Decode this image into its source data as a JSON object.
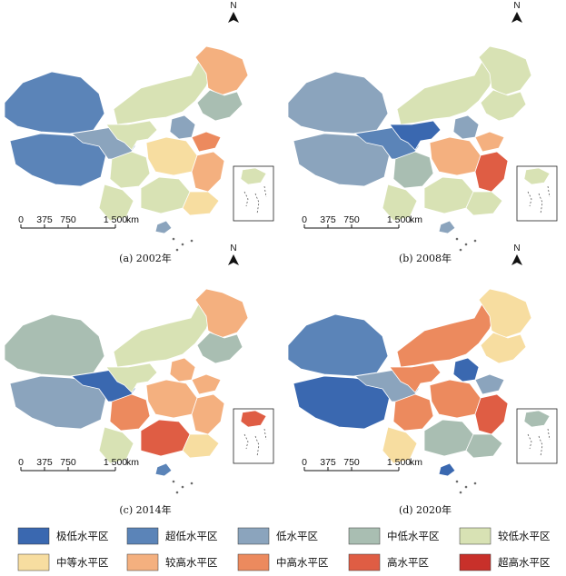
{
  "panels": [
    {
      "caption": "(a) 2002年",
      "scale": {
        "ticks": [
          "0",
          "375",
          "750",
          "1 500"
        ],
        "unit": "km"
      },
      "north": "N",
      "fill": {
        "west": "c2",
        "tibetPlain": "c2",
        "qinghai": "c3",
        "gansu": "c5",
        "innerMongolia": "c5",
        "northeast": "c4",
        "heilongjiang": "c7",
        "beijingArea": "c3",
        "shandong": "c8",
        "central": "c6",
        "south": "c5",
        "southeast": "c6",
        "east": "c7",
        "sichuan": "c5",
        "yunnan": "c5",
        "hainan": "c3"
      }
    },
    {
      "caption": "(b) 2008年",
      "scale": {
        "ticks": [
          "0",
          "375",
          "750",
          "1 500"
        ],
        "unit": "km"
      },
      "north": "N",
      "fill": {
        "west": "c3",
        "tibetPlain": "c3",
        "qinghai": "c2",
        "gansu": "c1",
        "innerMongolia": "c5",
        "northeast": "c5",
        "heilongjiang": "c5",
        "beijingArea": "c3",
        "shandong": "c7",
        "central": "c7",
        "south": "c5",
        "southeast": "c5",
        "east": "c9",
        "sichuan": "c4",
        "yunnan": "c5",
        "hainan": "c3"
      }
    },
    {
      "caption": "(c) 2014年",
      "scale": {
        "ticks": [
          "0",
          "375",
          "750",
          "1 500"
        ],
        "unit": "km"
      },
      "north": "N",
      "fill": {
        "west": "c4",
        "tibetPlain": "c3",
        "qinghai": "c1",
        "gansu": "c5",
        "innerMongolia": "c5",
        "northeast": "c4",
        "heilongjiang": "c7",
        "beijingArea": "c7",
        "shandong": "c7",
        "central": "c7",
        "south": "c9",
        "southeast": "c6",
        "east": "c7",
        "sichuan": "c8",
        "yunnan": "c5",
        "hainan": "c2"
      }
    },
    {
      "caption": "(d) 2020年",
      "scale": {
        "ticks": [
          "0",
          "375",
          "750",
          "1 500"
        ],
        "unit": "km"
      },
      "north": "N",
      "fill": {
        "west": "c2",
        "tibetPlain": "c1",
        "qinghai": "c3",
        "gansu": "c8",
        "innerMongolia": "c8",
        "northeast": "c6",
        "heilongjiang": "c6",
        "beijingArea": "c1",
        "shandong": "c3",
        "central": "c8",
        "south": "c4",
        "southeast": "c4",
        "east": "c9",
        "sichuan": "c8",
        "yunnan": "c6",
        "hainan": "c1"
      }
    }
  ],
  "legend": [
    {
      "label": "极低水平区",
      "color": "#3a68b0"
    },
    {
      "label": "超低水平区",
      "color": "#5b84b8"
    },
    {
      "label": "低水平区",
      "color": "#8ba4bd"
    },
    {
      "label": "中低水平区",
      "color": "#a9beb2"
    },
    {
      "label": "较低水平区",
      "color": "#d8e2b4"
    },
    {
      "label": "中等水平区",
      "color": "#f7dda0"
    },
    {
      "label": "较高水平区",
      "color": "#f4b07f"
    },
    {
      "label": "中高水平区",
      "color": "#ec8a5e"
    },
    {
      "label": "高水平区",
      "color": "#df5d44"
    },
    {
      "label": "超高水平区",
      "color": "#c8302a"
    }
  ],
  "colors": {
    "c1": "#3a68b0",
    "c2": "#5b84b8",
    "c3": "#8ba4bd",
    "c4": "#a9beb2",
    "c5": "#d8e2b4",
    "c6": "#f7dda0",
    "c7": "#f4b07f",
    "c8": "#ec8a5e",
    "c9": "#df5d44",
    "c10": "#c8302a"
  }
}
